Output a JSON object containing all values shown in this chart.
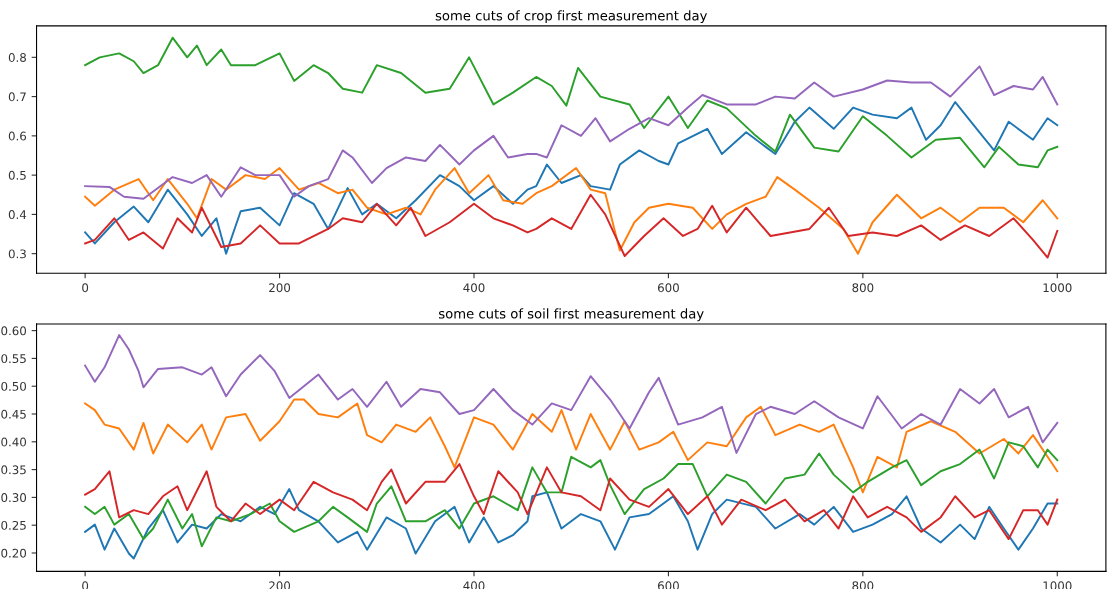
{
  "chart_data": [
    {
      "type": "line",
      "title": "some cuts of crop first measurement day",
      "xlim": [
        -50,
        1050
      ],
      "ylim": [
        0.25,
        0.88
      ],
      "xticks": [
        0,
        200,
        400,
        600,
        800,
        1000
      ],
      "yticks": [
        0.3,
        0.4,
        0.5,
        0.6,
        0.7,
        0.8
      ],
      "grid": false,
      "marker": "none",
      "line_style": "solid",
      "series": [
        {
          "color": "#1f77b4",
          "x": [
            0,
            10,
            30,
            50,
            65,
            85,
            105,
            120,
            135,
            145,
            160,
            180,
            200,
            215,
            235,
            250,
            270,
            285,
            300,
            320,
            340,
            365,
            385,
            400,
            420,
            440,
            455,
            464,
            475,
            490,
            510,
            520,
            540,
            550,
            570,
            590,
            600,
            610,
            640,
            655,
            680,
            700,
            710,
            730,
            745,
            770,
            790,
            810,
            835,
            850,
            865,
            880,
            895,
            920,
            935,
            950,
            975,
            990,
            1000
          ],
          "values": [
            0.354,
            0.326,
            0.38,
            0.42,
            0.38,
            0.463,
            0.4,
            0.345,
            0.39,
            0.3,
            0.408,
            0.417,
            0.372,
            0.454,
            0.427,
            0.363,
            0.467,
            0.4,
            0.427,
            0.39,
            0.436,
            0.5,
            0.472,
            0.436,
            0.472,
            0.427,
            0.463,
            0.472,
            0.527,
            0.48,
            0.5,
            0.472,
            0.463,
            0.527,
            0.563,
            0.536,
            0.527,
            0.581,
            0.618,
            0.554,
            0.609,
            0.572,
            0.554,
            0.636,
            0.672,
            0.618,
            0.672,
            0.654,
            0.645,
            0.672,
            0.59,
            0.627,
            0.686,
            0.609,
            0.563,
            0.636,
            0.59,
            0.645,
            0.627
          ]
        },
        {
          "color": "#ff7f0e",
          "x": [
            0,
            10,
            30,
            55,
            70,
            85,
            105,
            115,
            130,
            145,
            165,
            185,
            200,
            220,
            240,
            260,
            275,
            290,
            310,
            330,
            345,
            360,
            380,
            395,
            415,
            430,
            450,
            464,
            480,
            505,
            520,
            535,
            550,
            565,
            580,
            600,
            625,
            645,
            660,
            680,
            700,
            712,
            730,
            755,
            780,
            795,
            810,
            835,
            860,
            880,
            900,
            920,
            945,
            965,
            985,
            1000
          ],
          "values": [
            0.445,
            0.422,
            0.463,
            0.49,
            0.436,
            0.49,
            0.427,
            0.39,
            0.49,
            0.463,
            0.5,
            0.49,
            0.518,
            0.463,
            0.48,
            0.454,
            0.463,
            0.417,
            0.4,
            0.417,
            0.4,
            0.463,
            0.518,
            0.454,
            0.5,
            0.436,
            0.427,
            0.454,
            0.472,
            0.518,
            0.463,
            0.454,
            0.308,
            0.38,
            0.417,
            0.427,
            0.417,
            0.363,
            0.4,
            0.427,
            0.445,
            0.495,
            0.463,
            0.417,
            0.363,
            0.3,
            0.38,
            0.45,
            0.39,
            0.417,
            0.38,
            0.417,
            0.417,
            0.38,
            0.436,
            0.39
          ]
        },
        {
          "color": "#2ca02c",
          "x": [
            0,
            15,
            35,
            50,
            60,
            75,
            90,
            105,
            115,
            125,
            140,
            150,
            175,
            200,
            215,
            235,
            250,
            265,
            285,
            300,
            325,
            350,
            375,
            395,
            420,
            440,
            464,
            480,
            495,
            507,
            530,
            560,
            575,
            600,
            620,
            640,
            660,
            690,
            710,
            725,
            750,
            775,
            800,
            825,
            850,
            875,
            900,
            925,
            940,
            960,
            980,
            990,
            1000
          ],
          "values": [
            0.78,
            0.8,
            0.81,
            0.79,
            0.76,
            0.78,
            0.85,
            0.8,
            0.83,
            0.78,
            0.82,
            0.78,
            0.78,
            0.81,
            0.74,
            0.78,
            0.76,
            0.72,
            0.71,
            0.78,
            0.76,
            0.71,
            0.72,
            0.8,
            0.68,
            0.71,
            0.75,
            0.727,
            0.677,
            0.773,
            0.7,
            0.68,
            0.62,
            0.7,
            0.62,
            0.69,
            0.67,
            0.6,
            0.56,
            0.654,
            0.57,
            0.56,
            0.65,
            0.6,
            0.545,
            0.59,
            0.595,
            0.52,
            0.572,
            0.527,
            0.52,
            0.563,
            0.572
          ]
        },
        {
          "color": "#d62728",
          "x": [
            0,
            10,
            30,
            45,
            60,
            80,
            95,
            110,
            120,
            140,
            160,
            180,
            200,
            220,
            250,
            265,
            285,
            300,
            320,
            335,
            350,
            375,
            400,
            420,
            440,
            455,
            464,
            480,
            500,
            520,
            535,
            555,
            575,
            595,
            615,
            630,
            645,
            660,
            680,
            705,
            725,
            745,
            765,
            785,
            810,
            835,
            860,
            880,
            905,
            930,
            955,
            975,
            990,
            1000
          ],
          "values": [
            0.326,
            0.335,
            0.39,
            0.335,
            0.354,
            0.313,
            0.39,
            0.354,
            0.417,
            0.317,
            0.326,
            0.372,
            0.326,
            0.326,
            0.363,
            0.39,
            0.38,
            0.427,
            0.372,
            0.417,
            0.345,
            0.38,
            0.427,
            0.39,
            0.372,
            0.354,
            0.363,
            0.39,
            0.363,
            0.45,
            0.4,
            0.294,
            0.345,
            0.39,
            0.345,
            0.363,
            0.422,
            0.354,
            0.417,
            0.345,
            0.354,
            0.363,
            0.417,
            0.345,
            0.354,
            0.345,
            0.372,
            0.335,
            0.372,
            0.345,
            0.39,
            0.335,
            0.29,
            0.358
          ]
        },
        {
          "color": "#9467bd",
          "x": [
            0,
            25,
            40,
            60,
            90,
            110,
            125,
            140,
            160,
            175,
            200,
            215,
            230,
            250,
            265,
            275,
            295,
            310,
            330,
            350,
            365,
            385,
            400,
            420,
            435,
            455,
            464,
            475,
            490,
            510,
            525,
            540,
            560,
            580,
            600,
            620,
            635,
            660,
            690,
            710,
            730,
            750,
            770,
            800,
            825,
            850,
            870,
            890,
            920,
            935,
            955,
            975,
            985,
            1000
          ],
          "values": [
            0.472,
            0.47,
            0.445,
            0.44,
            0.495,
            0.48,
            0.5,
            0.445,
            0.52,
            0.5,
            0.5,
            0.445,
            0.472,
            0.49,
            0.563,
            0.545,
            0.48,
            0.518,
            0.545,
            0.536,
            0.577,
            0.527,
            0.563,
            0.6,
            0.545,
            0.554,
            0.554,
            0.545,
            0.627,
            0.6,
            0.645,
            0.586,
            0.618,
            0.645,
            0.627,
            0.672,
            0.704,
            0.68,
            0.68,
            0.7,
            0.695,
            0.736,
            0.7,
            0.718,
            0.741,
            0.736,
            0.736,
            0.7,
            0.777,
            0.704,
            0.727,
            0.718,
            0.75,
            0.68
          ]
        }
      ]
    },
    {
      "type": "line",
      "title": "some cuts of soil first measurement day",
      "xlim": [
        -50,
        1050
      ],
      "ylim": [
        0.167,
        0.612
      ],
      "xticks": [
        0,
        200,
        400,
        600,
        800,
        1000
      ],
      "yticks": [
        {
          "value": 0.2,
          "label": "0.20"
        },
        {
          "value": 0.25,
          "label": "0.25"
        },
        {
          "value": 0.3,
          "label": "0.30"
        },
        {
          "value": 0.35,
          "label": "0.35"
        },
        {
          "value": 0.4,
          "label": "0.40"
        },
        {
          "value": 0.45,
          "label": "0.45"
        },
        {
          "value": 0.5,
          "label": "0.50"
        },
        {
          "value": 0.55,
          "label": "0.55"
        },
        {
          "value": 0.6,
          "label": "0.60"
        }
      ],
      "grid": false,
      "marker": "none",
      "line_style": "solid",
      "series": [
        {
          "color": "#1f77b4",
          "x": [
            0,
            10,
            20,
            30,
            45,
            50,
            65,
            80,
            95,
            110,
            125,
            140,
            160,
            180,
            195,
            210,
            220,
            240,
            260,
            280,
            290,
            310,
            330,
            340,
            360,
            380,
            395,
            410,
            425,
            440,
            455,
            460,
            475,
            490,
            510,
            530,
            545,
            560,
            580,
            605,
            620,
            630,
            645,
            660,
            690,
            710,
            735,
            750,
            770,
            790,
            810,
            830,
            845,
            860,
            880,
            900,
            915,
            930,
            945,
            960,
            975,
            990,
            1000
          ],
          "values": [
            0.238,
            0.251,
            0.206,
            0.244,
            0.199,
            0.19,
            0.244,
            0.277,
            0.219,
            0.251,
            0.244,
            0.27,
            0.257,
            0.283,
            0.27,
            0.315,
            0.277,
            0.257,
            0.219,
            0.238,
            0.206,
            0.264,
            0.244,
            0.199,
            0.257,
            0.283,
            0.219,
            0.264,
            0.219,
            0.232,
            0.257,
            0.302,
            0.309,
            0.244,
            0.27,
            0.257,
            0.206,
            0.264,
            0.27,
            0.302,
            0.257,
            0.206,
            0.27,
            0.296,
            0.283,
            0.244,
            0.27,
            0.251,
            0.283,
            0.238,
            0.251,
            0.27,
            0.302,
            0.244,
            0.219,
            0.251,
            0.225,
            0.283,
            0.244,
            0.206,
            0.244,
            0.289,
            0.289
          ]
        },
        {
          "color": "#ff7f0e",
          "x": [
            0,
            10,
            20,
            35,
            50,
            60,
            70,
            85,
            105,
            120,
            130,
            145,
            165,
            180,
            200,
            215,
            225,
            240,
            260,
            280,
            290,
            305,
            320,
            340,
            355,
            370,
            380,
            400,
            420,
            440,
            460,
            480,
            490,
            505,
            520,
            540,
            555,
            570,
            590,
            605,
            620,
            640,
            660,
            680,
            695,
            710,
            735,
            755,
            770,
            790,
            800,
            815,
            835,
            845,
            870,
            895,
            920,
            945,
            960,
            975,
            990,
            1000
          ],
          "values": [
            0.469,
            0.457,
            0.431,
            0.424,
            0.386,
            0.434,
            0.379,
            0.431,
            0.399,
            0.431,
            0.386,
            0.444,
            0.45,
            0.402,
            0.437,
            0.476,
            0.476,
            0.45,
            0.444,
            0.469,
            0.412,
            0.399,
            0.431,
            0.418,
            0.444,
            0.392,
            0.354,
            0.444,
            0.431,
            0.386,
            0.45,
            0.418,
            0.457,
            0.386,
            0.45,
            0.386,
            0.437,
            0.386,
            0.399,
            0.418,
            0.367,
            0.399,
            0.392,
            0.444,
            0.463,
            0.412,
            0.431,
            0.418,
            0.431,
            0.354,
            0.309,
            0.373,
            0.354,
            0.418,
            0.437,
            0.418,
            0.379,
            0.405,
            0.379,
            0.412,
            0.373,
            0.347
          ]
        },
        {
          "color": "#2ca02c",
          "x": [
            0,
            10,
            20,
            30,
            45,
            60,
            70,
            85,
            100,
            110,
            120,
            135,
            150,
            170,
            190,
            200,
            215,
            240,
            255,
            270,
            290,
            300,
            315,
            330,
            350,
            370,
            385,
            400,
            420,
            445,
            460,
            475,
            490,
            500,
            520,
            530,
            540,
            555,
            575,
            595,
            610,
            625,
            640,
            660,
            680,
            700,
            720,
            740,
            755,
            770,
            790,
            805,
            830,
            845,
            860,
            880,
            900,
            920,
            935,
            950,
            965,
            980,
            990,
            1000
          ],
          "values": [
            0.283,
            0.27,
            0.283,
            0.251,
            0.27,
            0.225,
            0.244,
            0.296,
            0.244,
            0.27,
            0.212,
            0.264,
            0.257,
            0.27,
            0.289,
            0.257,
            0.238,
            0.257,
            0.283,
            0.264,
            0.238,
            0.289,
            0.32,
            0.257,
            0.257,
            0.277,
            0.244,
            0.289,
            0.302,
            0.277,
            0.354,
            0.309,
            0.309,
            0.373,
            0.354,
            0.367,
            0.322,
            0.27,
            0.315,
            0.334,
            0.36,
            0.36,
            0.302,
            0.341,
            0.328,
            0.289,
            0.334,
            0.341,
            0.379,
            0.341,
            0.309,
            0.328,
            0.354,
            0.367,
            0.322,
            0.347,
            0.36,
            0.386,
            0.334,
            0.399,
            0.392,
            0.354,
            0.386,
            0.367
          ]
        },
        {
          "color": "#d62728",
          "x": [
            0,
            10,
            25,
            35,
            50,
            65,
            80,
            95,
            105,
            125,
            135,
            150,
            165,
            180,
            200,
            215,
            235,
            255,
            275,
            290,
            305,
            315,
            330,
            350,
            370,
            385,
            400,
            410,
            425,
            445,
            455,
            475,
            490,
            510,
            530,
            540,
            560,
            580,
            600,
            620,
            640,
            655,
            675,
            700,
            720,
            740,
            760,
            775,
            790,
            805,
            825,
            845,
            860,
            880,
            895,
            915,
            930,
            950,
            965,
            980,
            990,
            1000
          ],
          "values": [
            0.305,
            0.315,
            0.347,
            0.264,
            0.277,
            0.27,
            0.302,
            0.32,
            0.277,
            0.347,
            0.283,
            0.257,
            0.289,
            0.27,
            0.296,
            0.277,
            0.328,
            0.309,
            0.296,
            0.277,
            0.328,
            0.35,
            0.289,
            0.328,
            0.328,
            0.36,
            0.302,
            0.27,
            0.347,
            0.309,
            0.27,
            0.354,
            0.309,
            0.302,
            0.277,
            0.334,
            0.296,
            0.283,
            0.315,
            0.27,
            0.302,
            0.251,
            0.296,
            0.277,
            0.296,
            0.257,
            0.277,
            0.244,
            0.302,
            0.264,
            0.283,
            0.264,
            0.238,
            0.264,
            0.302,
            0.264,
            0.277,
            0.225,
            0.277,
            0.277,
            0.251,
            0.296
          ]
        },
        {
          "color": "#9467bd",
          "x": [
            0,
            10,
            20,
            35,
            45,
            55,
            60,
            75,
            100,
            120,
            130,
            145,
            160,
            180,
            195,
            210,
            225,
            240,
            260,
            275,
            290,
            310,
            325,
            345,
            365,
            385,
            400,
            420,
            440,
            460,
            480,
            500,
            520,
            540,
            560,
            580,
            590,
            610,
            635,
            655,
            670,
            690,
            705,
            730,
            750,
            775,
            800,
            815,
            840,
            860,
            880,
            900,
            920,
            935,
            950,
            970,
            985,
            1000
          ],
          "values": [
            0.537,
            0.508,
            0.534,
            0.592,
            0.566,
            0.527,
            0.498,
            0.531,
            0.534,
            0.521,
            0.534,
            0.482,
            0.521,
            0.556,
            0.527,
            0.479,
            0.5,
            0.521,
            0.476,
            0.495,
            0.463,
            0.508,
            0.463,
            0.495,
            0.489,
            0.45,
            0.457,
            0.495,
            0.457,
            0.431,
            0.469,
            0.457,
            0.518,
            0.476,
            0.424,
            0.489,
            0.515,
            0.431,
            0.444,
            0.463,
            0.38,
            0.45,
            0.463,
            0.45,
            0.473,
            0.444,
            0.424,
            0.482,
            0.424,
            0.45,
            0.431,
            0.495,
            0.469,
            0.495,
            0.444,
            0.463,
            0.399,
            0.434
          ]
        }
      ]
    }
  ]
}
